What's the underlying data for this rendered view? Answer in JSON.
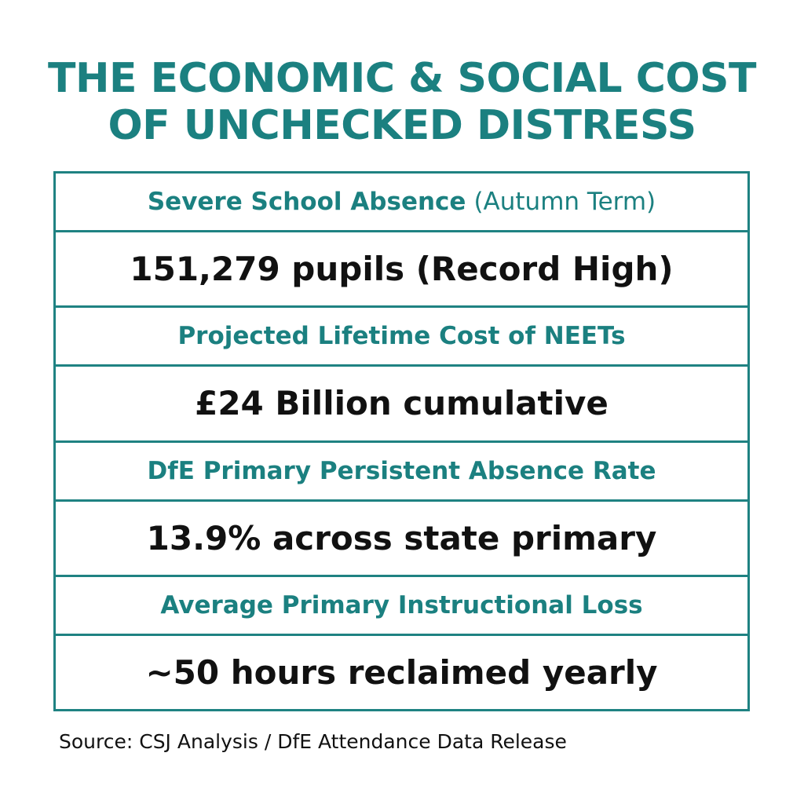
{
  "title": [
    "THE ECONOMIC & SOCIAL COST",
    "OF UNCHECKED DISTRESS"
  ],
  "table": {
    "rows": [
      {
        "label": "Severe School Absence",
        "qualifier": "(Autumn Term)",
        "value": "151,279 pupils (Record High)"
      },
      {
        "label": "Projected Lifetime Cost of NEETs",
        "value": "£24 Billion cumulative"
      },
      {
        "label": "DfE Primary Persistent Absence Rate",
        "value": "13.9% across state primary"
      },
      {
        "label": "Average Primary Instructional Loss",
        "value": "~50 hours reclaimed yearly"
      }
    ]
  },
  "source": "Source: CSJ Analysis / DfE Attendance Data Release"
}
